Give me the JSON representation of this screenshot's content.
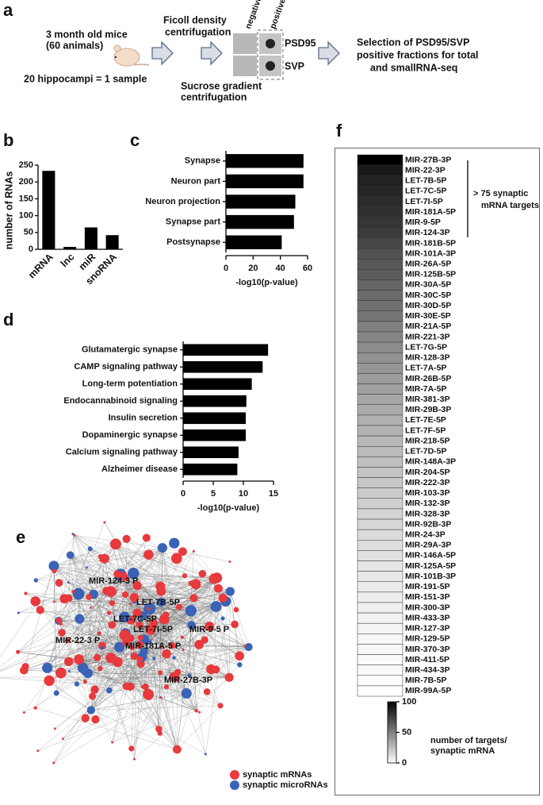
{
  "figure": {
    "panel_labels": [
      "a",
      "b",
      "c",
      "d",
      "e",
      "f"
    ],
    "panel_a": {
      "mice": [
        "3 month old mice",
        "(60 animals)"
      ],
      "sample": "20 hippocampi = 1 sample",
      "ficoll": [
        "Ficoll density",
        "centrifugation"
      ],
      "sucrose": [
        "Sucrose gradient",
        "centrifugation"
      ],
      "negative": "negative",
      "positive": "positive",
      "psd95": "PSD95",
      "svp": "SVP",
      "selection": [
        "Selection of PSD95/SVP",
        "positive fractions for total",
        "and smallRNA-seq"
      ]
    },
    "panel_e": {
      "node_labels": [
        "MIR-124-3 P",
        "LET-7B-5P",
        "LET-7C-5P",
        "LET-7I-5P",
        "MIR-9-5 P",
        "MIR-22-3 P",
        "MIR-181A-5 P",
        "MIR-27B-3P"
      ],
      "legend": [
        {
          "name": "synaptic mRNAs",
          "color": "#e8393d"
        },
        {
          "name": "synaptic microRNAs",
          "color": "#3a62b5"
        }
      ]
    }
  },
  "chart_data": [
    {
      "type": "bar",
      "ylabel": "number of RNAs",
      "categories": [
        "mRNA",
        "lnc",
        "miR",
        "snoRNA"
      ],
      "values": [
        233,
        7,
        65,
        42
      ],
      "color": "#000000",
      "ylim": [
        0,
        250
      ],
      "yticks": [
        0,
        50,
        100,
        150,
        200,
        250
      ]
    },
    {
      "type": "bar",
      "orientation": "horizontal",
      "xlabel": "-log10(p-value)",
      "categories": [
        "Synapse",
        "Neuron part",
        "Neuron projection",
        "Synapse part",
        "Postsynapse"
      ],
      "values": [
        57,
        57,
        51,
        50,
        41
      ],
      "color": "#000000",
      "xlim": [
        0,
        60
      ],
      "xticks": [
        0,
        20,
        40,
        60
      ]
    },
    {
      "type": "bar",
      "orientation": "horizontal",
      "xlabel": "-log10(p-value)",
      "categories": [
        "Glutamatergic synapse",
        "CAMP signaling pathway",
        "Long-term potentiation",
        "Endocannabinoid signaling",
        "Insulin secretion",
        "Dopaminergic synapse",
        "Calcium signaling pathway",
        "Alzheimer disease"
      ],
      "values": [
        14.1,
        13.2,
        11.4,
        10.5,
        10.4,
        10.4,
        9.2,
        9.0
      ],
      "color": "#000000",
      "xlim": [
        0,
        15
      ],
      "xticks": [
        0,
        5,
        10,
        15
      ]
    },
    {
      "type": "heatmap",
      "categories": [
        "MIR-27B-3P",
        "MIR-22-3P",
        "LET-7B-5P",
        "LET-7C-5P",
        "LET-7I-5P",
        "MIR-181A-5P",
        "MIR-9-5P",
        "MIR-124-3P",
        "MIR-181B-5P",
        "MIR-101A-3P",
        "MIR-26A-5P",
        "MIR-125B-5P",
        "MIR-30A-5P",
        "MIR-30C-5P",
        "MIR-30D-5P",
        "MIR-30E-5P",
        "MIR-21A-5P",
        "MIR-221-3P",
        "LET-7G-5P",
        "MIR-128-3P",
        "LET-7A-5P",
        "MIR-26B-5P",
        "MIR-7A-5P",
        "MIR-381-3P",
        "MIR-29B-3P",
        "LET-7E-5P",
        "LET-7F-5P",
        "MIR-218-5P",
        "LET-7D-5P",
        "MIR-148A-3P",
        "MIR-204-5P",
        "MIR-222-3P",
        "MIR-103-3P",
        "MIR-132-3P",
        "MIR-328-3P",
        "MIR-92B-3P",
        "MIR-24-3P",
        "MIR-29A-3P",
        "MIR-146A-5P",
        "MIR-125A-5P",
        "MIR-101B-3P",
        "MIR-191-5P",
        "MIR-151-3P",
        "MIR-300-3P",
        "MIR-433-3P",
        "MIR-127-3P",
        "MIR-129-5P",
        "MIR-370-3P",
        "MIR-411-5P",
        "MIR-434-3P",
        "MIR-7B-5P",
        "MIR-99A-5P"
      ],
      "values": [
        100,
        90,
        87,
        85,
        83,
        81,
        79,
        77,
        72,
        68,
        66,
        64,
        60,
        58,
        56,
        54,
        50,
        48,
        45,
        43,
        41,
        39,
        37,
        35,
        33,
        31,
        30,
        28,
        27,
        25,
        23,
        22,
        20,
        19,
        17,
        16,
        14,
        13,
        12,
        10,
        9,
        8,
        7,
        6,
        5,
        4,
        3,
        3,
        2,
        2,
        1,
        0
      ],
      "cmap": [
        "#ffffff",
        "#000000"
      ],
      "clim": [
        0,
        100
      ],
      "cticks": [
        0,
        50,
        100
      ],
      "colorbar_label": [
        "number of targets/",
        "synaptic mRNA"
      ],
      "annotation": [
        "> 75 synaptic",
        "mRNA targets"
      ]
    }
  ]
}
